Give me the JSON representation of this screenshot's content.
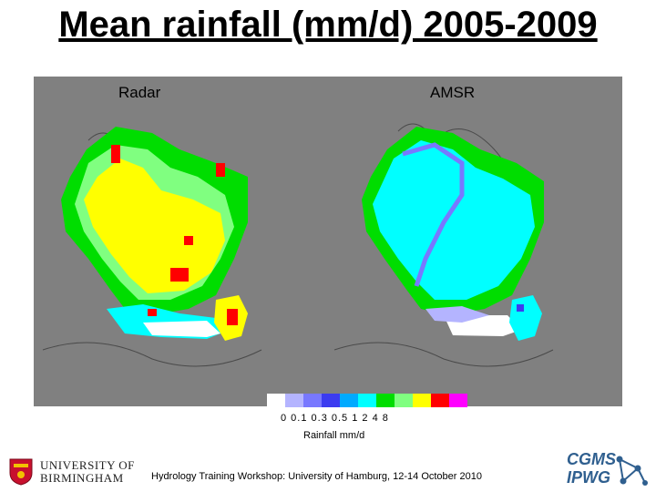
{
  "title": "Mean rainfall (mm/d) 2005-2009",
  "maps": {
    "left_label": "Radar",
    "right_label": "AMSR"
  },
  "legend": {
    "colors": [
      "#ffffff",
      "#b4b4ff",
      "#7878ff",
      "#3c3cf0",
      "#00aaff",
      "#00ffff",
      "#00dd00",
      "#80ff80",
      "#ffff00",
      "#ff0000",
      "#ff00ff"
    ],
    "values_text": "0 0.1 0.3 0.5  1   2   4   8",
    "title": "Rainfall mm/d"
  },
  "footer": "Hydrology Training Workshop: University of Hamburg, 12-14 October 2010",
  "logos": {
    "university": "UNIVERSITY OF BIRMINGHAM",
    "cgms": "CGMS",
    "ipwg": "IPWG"
  }
}
